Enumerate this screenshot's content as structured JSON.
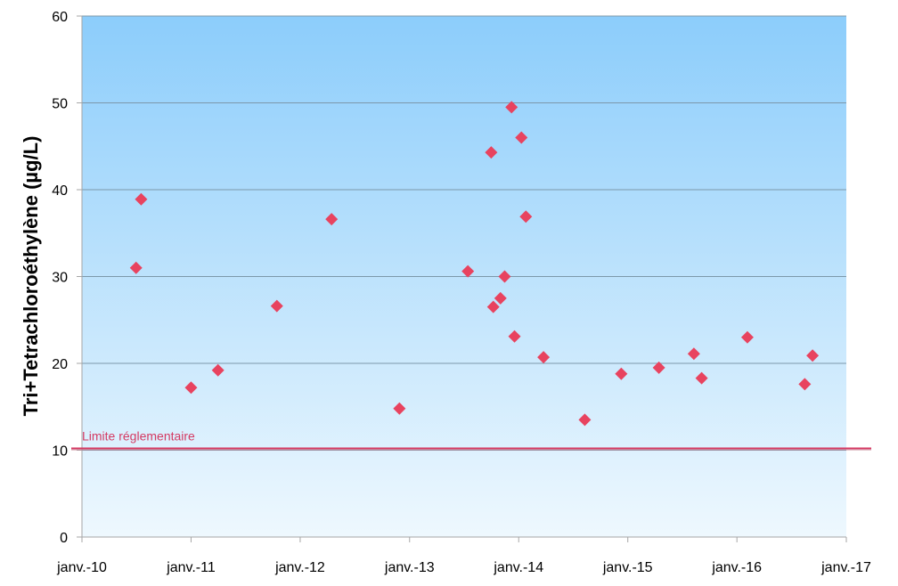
{
  "chart_data": {
    "type": "scatter",
    "title": "",
    "xlabel": "",
    "ylabel": "Tri+Tetrachloroéthylène (µg/L)",
    "xlim": [
      "2010-01-01",
      "2017-01-01"
    ],
    "ylim": [
      0,
      60
    ],
    "x_ticks": [
      "janv.-10",
      "janv.-11",
      "janv.-12",
      "janv.-13",
      "janv.-14",
      "janv.-15",
      "janv.-16",
      "janv.-17"
    ],
    "y_ticks": [
      0,
      10,
      20,
      30,
      40,
      50,
      60
    ],
    "grid": true,
    "marker": "diamond",
    "marker_color": "#e8435f",
    "plot_background": "gradient #8ccdfb top to #edf7fd bottom",
    "points": [
      {
        "x": "2010-07-01",
        "y": 31.0
      },
      {
        "x": "2010-07-18",
        "y": 38.9
      },
      {
        "x": "2011-01-01",
        "y": 17.2
      },
      {
        "x": "2011-04-01",
        "y": 19.2
      },
      {
        "x": "2011-10-15",
        "y": 26.6
      },
      {
        "x": "2012-04-15",
        "y": 36.6
      },
      {
        "x": "2012-11-28",
        "y": 14.8
      },
      {
        "x": "2013-07-15",
        "y": 30.6
      },
      {
        "x": "2013-10-01",
        "y": 44.3
      },
      {
        "x": "2013-10-08",
        "y": 26.5
      },
      {
        "x": "2013-11-01",
        "y": 27.5
      },
      {
        "x": "2013-11-15",
        "y": 30.0
      },
      {
        "x": "2013-12-08",
        "y": 49.5
      },
      {
        "x": "2013-12-18",
        "y": 23.1
      },
      {
        "x": "2014-01-10",
        "y": 46.0
      },
      {
        "x": "2014-01-25",
        "y": 36.9
      },
      {
        "x": "2014-03-25",
        "y": 20.7
      },
      {
        "x": "2014-08-10",
        "y": 13.5
      },
      {
        "x": "2014-12-10",
        "y": 18.8
      },
      {
        "x": "2015-04-15",
        "y": 19.5
      },
      {
        "x": "2015-08-10",
        "y": 21.1
      },
      {
        "x": "2015-09-05",
        "y": 18.3
      },
      {
        "x": "2016-02-05",
        "y": 23.0
      },
      {
        "x": "2016-08-15",
        "y": 17.6
      },
      {
        "x": "2016-09-10",
        "y": 20.9
      }
    ],
    "reference_line": {
      "y": 10.2,
      "label": "Limite réglementaire",
      "color": "#d43a63"
    }
  }
}
